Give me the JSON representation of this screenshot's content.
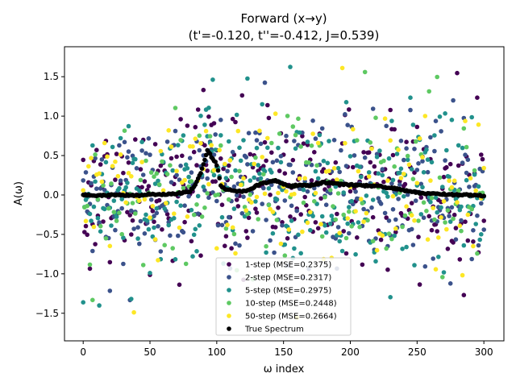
{
  "chart_data": {
    "type": "scatter",
    "title": "Forward (x→y)",
    "subtitle": "(t'=-0.120, t''=-0.412, J=0.539)",
    "xlabel": "ω index",
    "ylabel": "A(ω)",
    "xlim": [
      -14,
      315
    ],
    "ylim": [
      -1.85,
      1.88
    ],
    "xticks": [
      0,
      50,
      100,
      150,
      200,
      250,
      300
    ],
    "yticks": [
      -1.5,
      -1.0,
      -0.5,
      0.0,
      0.5,
      1.0,
      1.5
    ],
    "xtick_labels": [
      "0",
      "50",
      "100",
      "150",
      "200",
      "250",
      "300"
    ],
    "ytick_labels": [
      "−1.5",
      "−1.0",
      "−0.5",
      "0.0",
      "0.5",
      "1.0",
      "1.5"
    ],
    "grid": false,
    "legend_position": "lower center",
    "n_points": 301,
    "true_spectrum": {
      "name": "True Spectrum",
      "color": "#000000",
      "x": [
        0,
        10,
        20,
        30,
        40,
        50,
        60,
        70,
        75,
        80,
        84,
        88,
        91,
        93,
        95,
        97,
        99,
        101,
        103,
        106,
        110,
        115,
        120,
        125,
        130,
        135,
        140,
        145,
        150,
        155,
        160,
        170,
        180,
        190,
        200,
        210,
        220,
        230,
        240,
        250,
        260,
        270,
        280,
        290,
        300
      ],
      "y": [
        0.0,
        -0.01,
        0.0,
        0.0,
        -0.01,
        0.01,
        0.01,
        0.02,
        0.03,
        0.05,
        0.13,
        0.28,
        0.45,
        0.56,
        0.52,
        0.45,
        0.42,
        0.32,
        0.12,
        0.07,
        0.07,
        0.05,
        0.05,
        0.07,
        0.12,
        0.15,
        0.17,
        0.18,
        0.14,
        0.11,
        0.12,
        0.12,
        0.16,
        0.14,
        0.13,
        0.12,
        0.11,
        0.09,
        0.06,
        0.03,
        0.02,
        0.01,
        0.0,
        0.0,
        -0.01
      ]
    },
    "series": [
      {
        "name": "1-step (MSE=0.2375)",
        "color": "#440154",
        "noise_std": 0.48
      },
      {
        "name": "2-step (MSE=0.2317)",
        "color": "#3b528b",
        "noise_std": 0.47
      },
      {
        "name": "5-step (MSE=0.2975)",
        "color": "#21918c",
        "noise_std": 0.54
      },
      {
        "name": "10-step (MSE=0.2448)",
        "color": "#5ec962",
        "noise_std": 0.49
      },
      {
        "name": "50-step (MSE=0.2664)",
        "color": "#fde725",
        "noise_std": 0.51
      }
    ]
  }
}
